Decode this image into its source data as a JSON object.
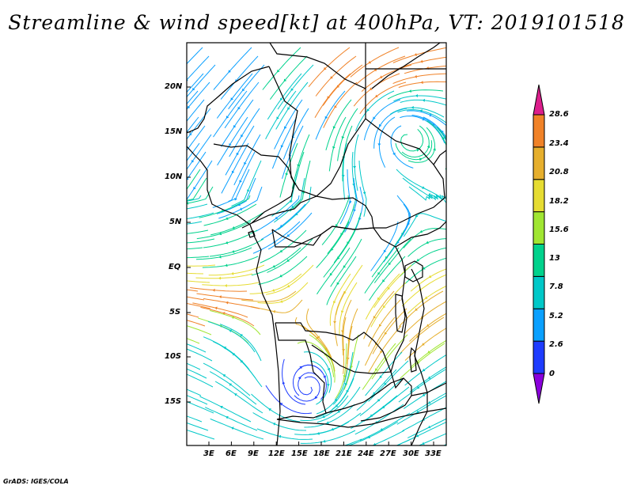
{
  "title": "Streamline & wind speed[kt] at 400hPa, VT: 2019101518",
  "footer": "GrADS: IGES/COLA",
  "map": {
    "lat_labels": [
      "20N",
      "15N",
      "10N",
      "5N",
      "EQ",
      "5S",
      "10S",
      "15S"
    ],
    "lon_labels": [
      "3E",
      "6E",
      "9E",
      "12E",
      "15E",
      "18E",
      "21E",
      "24E",
      "27E",
      "30E",
      "33E"
    ]
  },
  "colorbar": {
    "labels": [
      "28.6",
      "23.4",
      "20.8",
      "18.2",
      "15.6",
      "13",
      "7.8",
      "5.2",
      "2.6",
      "0"
    ],
    "colors": [
      "#8a00dc",
      "#1e3cff",
      "#0aa0ff",
      "#00c8c8",
      "#00d28c",
      "#a0e632",
      "#e6dc32",
      "#e6af2d",
      "#f08228",
      "#dc1e8c"
    ]
  }
}
